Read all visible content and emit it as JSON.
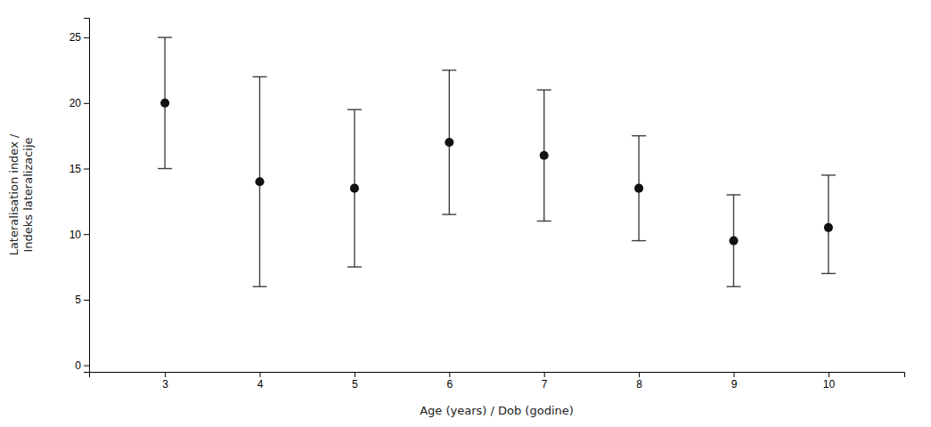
{
  "chart_data": {
    "type": "scatter",
    "x_label": "Age (years) / Dob (godine)",
    "y_label": "Lateralisation index /\nIndeks lateralizacije",
    "x": [
      3,
      4,
      5,
      6,
      7,
      8,
      9,
      10
    ],
    "values": [
      20.0,
      14.0,
      13.5,
      17.0,
      16.0,
      13.5,
      9.5,
      10.5
    ],
    "lower": [
      15.0,
      6.0,
      7.5,
      11.5,
      11.0,
      9.5,
      6.0,
      7.0
    ],
    "upper": [
      25.0,
      22.0,
      19.5,
      22.5,
      21.0,
      17.5,
      13.0,
      14.5
    ],
    "color": "#111111",
    "marker": "circle",
    "xlim": [
      2.2,
      10.8
    ],
    "xticks": [
      3,
      4,
      5,
      6,
      7,
      8,
      9,
      10
    ],
    "ylim": [
      -0.5,
      26.5
    ],
    "yticks": [
      0,
      5,
      10,
      15,
      20,
      25
    ],
    "grid": false
  }
}
